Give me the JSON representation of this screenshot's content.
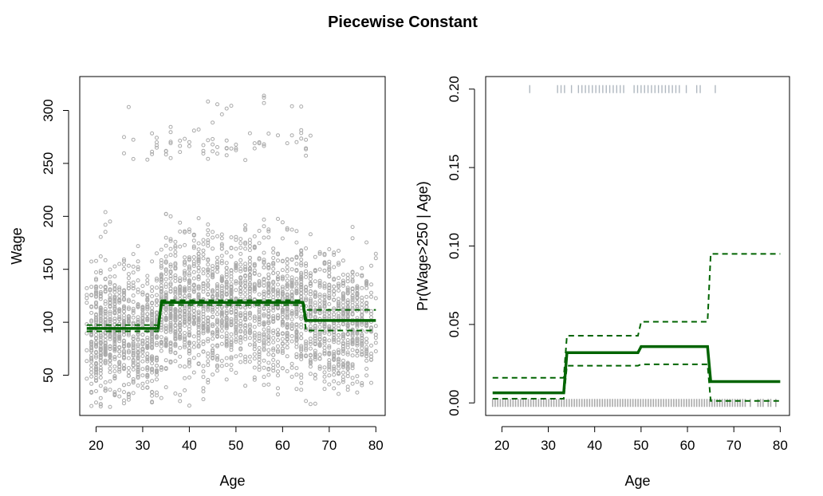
{
  "title": "Piecewise Constant",
  "chart_data": [
    {
      "type": "scatter",
      "xlabel": "Age",
      "ylabel": "Wage",
      "xlim": [
        16.5,
        82
      ],
      "ylim": [
        12,
        332
      ],
      "xticks": [
        20,
        30,
        40,
        50,
        60,
        70,
        80
      ],
      "yticks": [
        50,
        100,
        150,
        200,
        250,
        300
      ],
      "points": {
        "n_bulk": 2900,
        "n_high": 79,
        "seed": 7,
        "high_range": [
          250,
          320
        ],
        "age_range": [
          18,
          80
        ]
      },
      "fit": {
        "breaks": [
          18,
          33.5,
          64.5,
          80
        ],
        "values": [
          94.2,
          118.7,
          101.7
        ],
        "upper": [
          97.4,
          120.8,
          111.7
        ],
        "lower": [
          91.4,
          116.3,
          92.2
        ]
      },
      "colors": {
        "points": "#aaaaaa",
        "fit": "#006400"
      }
    },
    {
      "type": "line",
      "xlabel": "Age",
      "ylabel": "Pr(Wage>250 | Age)",
      "xlim": [
        16.5,
        82
      ],
      "ylim": [
        -0.008,
        0.208
      ],
      "xticks": [
        20,
        30,
        40,
        50,
        60,
        70,
        80
      ],
      "yticks": [
        "0.00",
        "0.05",
        "0.10",
        "0.15",
        "0.20"
      ],
      "fit": {
        "breaks": [
          18,
          33.5,
          49.5,
          64.5,
          80
        ],
        "values": [
          0.0064,
          0.032,
          0.0359,
          0.0136
        ],
        "upper": [
          0.016,
          0.0428,
          0.0517,
          0.095
        ],
        "lower": [
          0.0027,
          0.0237,
          0.0246,
          0.0013
        ]
      },
      "rug": {
        "top_value": 0.2,
        "bottom_value": 0.0
      },
      "colors": {
        "rug": "#aaaaaa",
        "fit": "#006400"
      }
    }
  ]
}
